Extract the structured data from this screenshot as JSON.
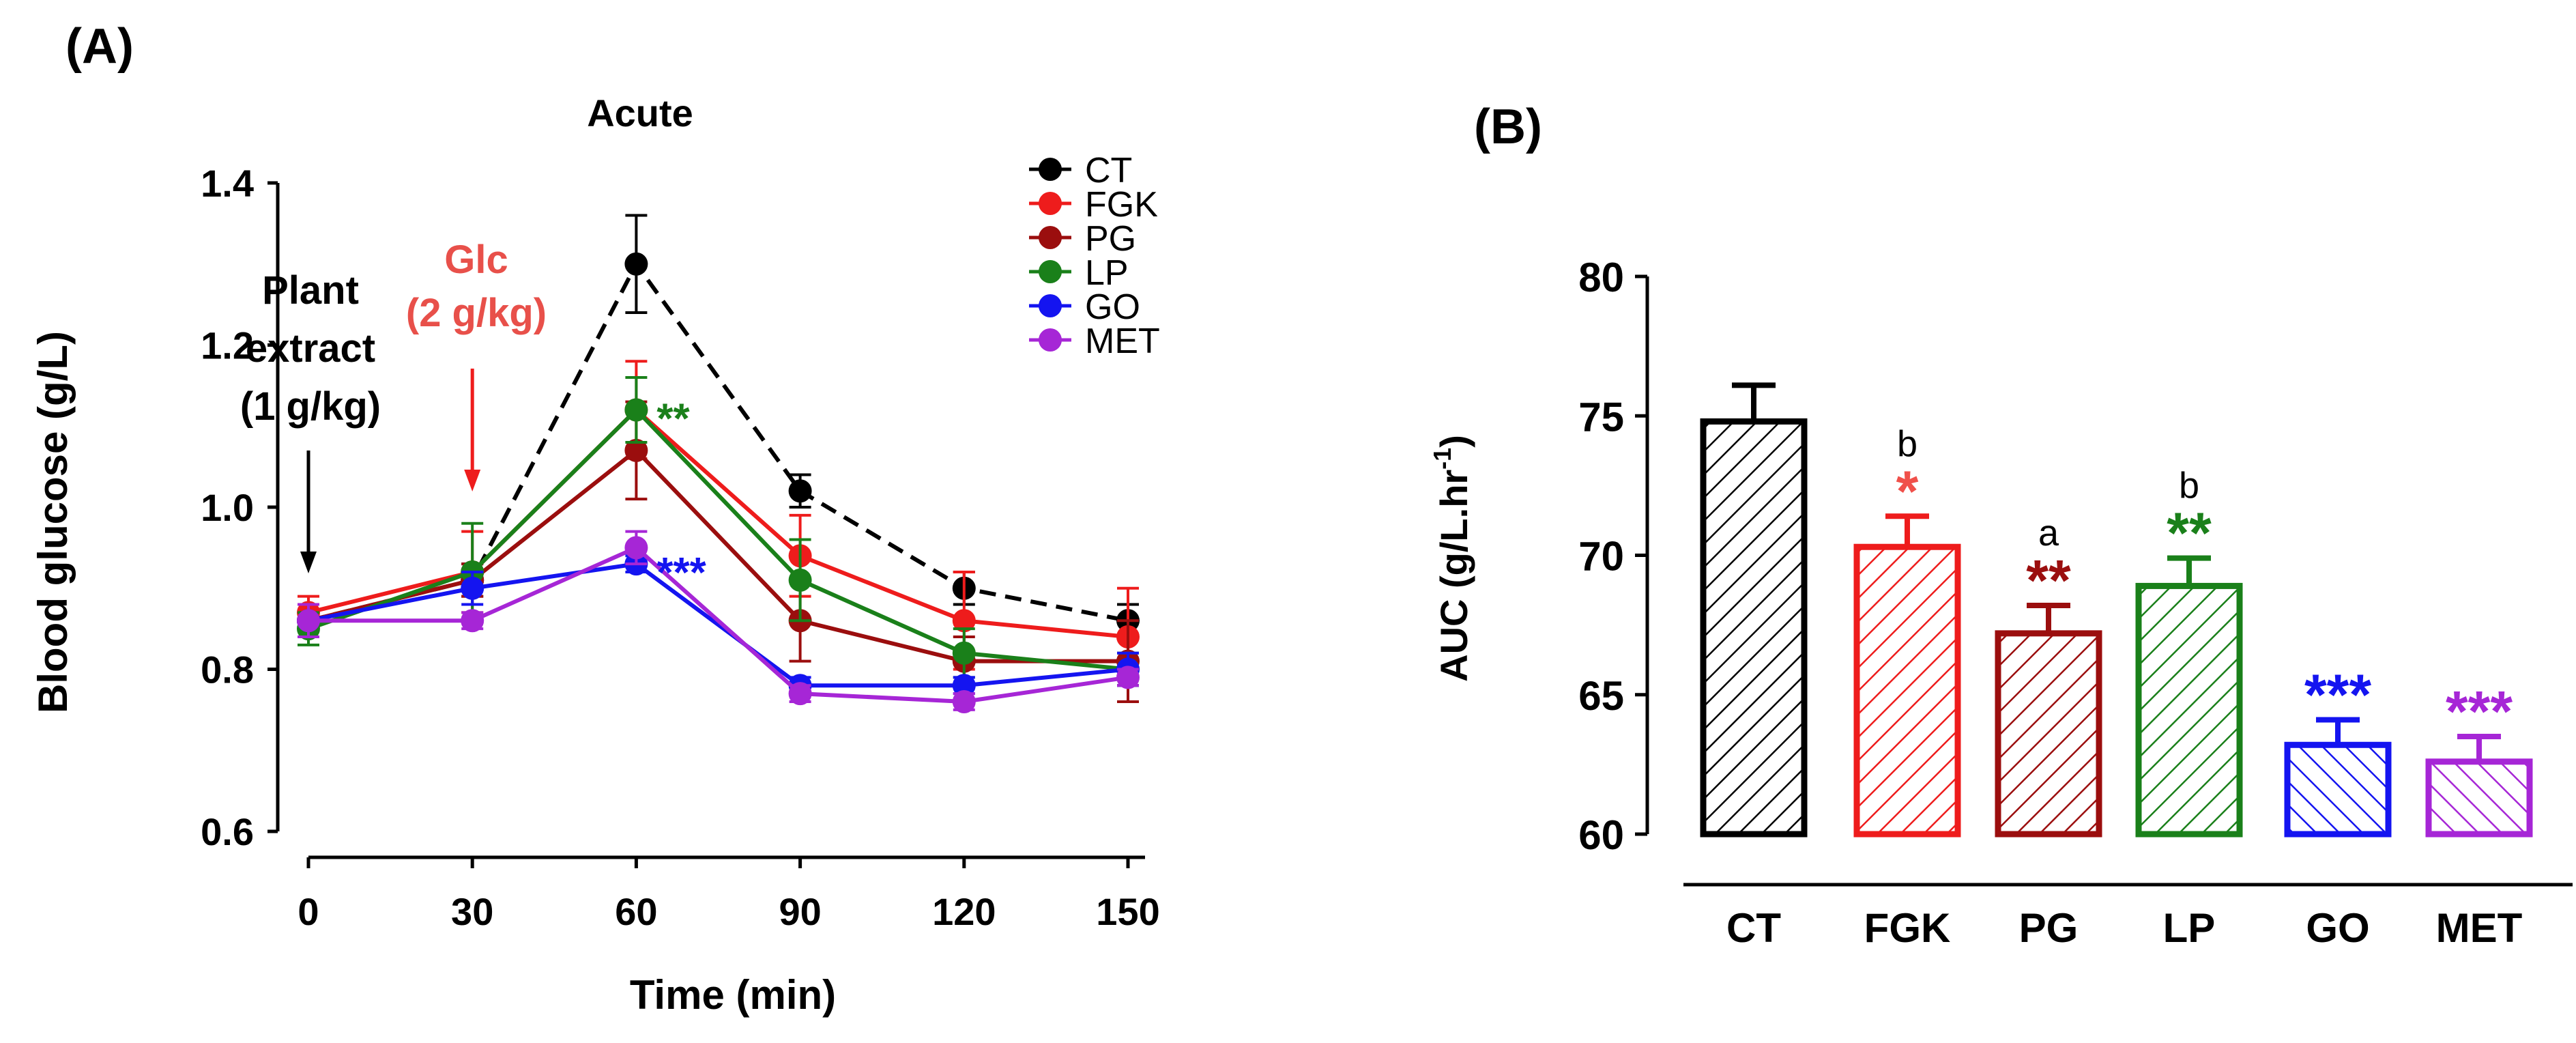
{
  "chart_data": [
    {
      "panel_label": "(A)",
      "type": "line",
      "title": "Acute",
      "xlabel": "Time (min)",
      "ylabel": "Blood glucose (g/L)",
      "x": [
        0,
        30,
        60,
        90,
        120,
        150
      ],
      "x_ticks": [
        "0",
        "30",
        "60",
        "90",
        "120",
        "150"
      ],
      "xlim": [
        0,
        150
      ],
      "ylim": [
        0.6,
        1.4
      ],
      "y_ticks": [
        "0.6",
        "0.8",
        "1.0",
        "1.2",
        "1.4"
      ],
      "y_tick_values": [
        0.6,
        0.8,
        1.0,
        1.2,
        1.4
      ],
      "grid": false,
      "legend_position": "top-right",
      "series": [
        {
          "name": "CT",
          "color": "#000000",
          "dashed": true,
          "values": [
            0.86,
            0.91,
            1.3,
            1.02,
            0.9,
            0.86
          ],
          "errors": [
            0.02,
            0.02,
            0.06,
            0.02,
            0.02,
            0.02
          ]
        },
        {
          "name": "FGK",
          "color": "#ee1c1c",
          "dashed": false,
          "values": [
            0.87,
            0.92,
            1.12,
            0.94,
            0.86,
            0.84
          ],
          "errors": [
            0.02,
            0.05,
            0.06,
            0.05,
            0.06,
            0.06
          ]
        },
        {
          "name": "PG",
          "color": "#9b0e0e",
          "dashed": false,
          "values": [
            0.86,
            0.91,
            1.07,
            0.86,
            0.81,
            0.81
          ],
          "errors": [
            0.02,
            0.02,
            0.06,
            0.05,
            0.03,
            0.05
          ]
        },
        {
          "name": "LP",
          "color": "#1a801a",
          "dashed": false,
          "values": [
            0.85,
            0.92,
            1.12,
            0.91,
            0.82,
            0.8
          ],
          "errors": [
            0.02,
            0.06,
            0.04,
            0.05,
            0.03,
            0.02
          ]
        },
        {
          "name": "GO",
          "color": "#1414f0",
          "dashed": false,
          "values": [
            0.86,
            0.9,
            0.93,
            0.78,
            0.78,
            0.8
          ],
          "errors": [
            0.02,
            0.02,
            0.01,
            0.01,
            0.01,
            0.02
          ]
        },
        {
          "name": "MET",
          "color": "#a626d6",
          "dashed": false,
          "values": [
            0.86,
            0.86,
            0.95,
            0.77,
            0.76,
            0.79
          ],
          "errors": [
            0.02,
            0.01,
            0.02,
            0.01,
            0.01,
            0.01
          ]
        }
      ],
      "significance": [
        {
          "text": "**",
          "color": "#1a801a",
          "x": 60,
          "y": 1.12
        },
        {
          "text": "***",
          "color": "#1414f0",
          "x": 60,
          "y": 0.93
        }
      ],
      "annotations": [
        {
          "lines": [
            "Plant",
            "extract",
            "(1 g/kg)"
          ],
          "color": "#000000",
          "arrow_x": 0
        },
        {
          "lines": [
            "Glc",
            "(2 g/kg)"
          ],
          "color": "#e8504a",
          "arrow_x": 30
        }
      ]
    },
    {
      "panel_label": "(B)",
      "type": "bar",
      "title": "",
      "xlabel": "",
      "ylabel": "AUC (g/L.hr",
      "ylabel_superscript": "-1",
      "ylabel_suffix": ")",
      "ylim": [
        60,
        80
      ],
      "y_ticks": [
        "60",
        "65",
        "70",
        "75",
        "80"
      ],
      "y_tick_values": [
        60,
        65,
        70,
        75,
        80
      ],
      "grid": false,
      "categories": [
        "CT",
        "FGK",
        "PG",
        "LP",
        "GO",
        "MET"
      ],
      "values": [
        74.8,
        70.3,
        67.2,
        68.9,
        63.2,
        62.6
      ],
      "errors": [
        1.3,
        1.1,
        1.0,
        1.0,
        0.9,
        0.9
      ],
      "colors": [
        "#000000",
        "#ee1c1c",
        "#9b0e0e",
        "#1a801a",
        "#1414f0",
        "#a626d6"
      ],
      "hatch": [
        "right",
        "right",
        "right",
        "right",
        "left",
        "left"
      ],
      "significance": [
        "",
        "*",
        "**",
        "**",
        "***",
        "***"
      ],
      "letters": [
        "",
        "b",
        "a",
        "b",
        "",
        ""
      ]
    }
  ]
}
